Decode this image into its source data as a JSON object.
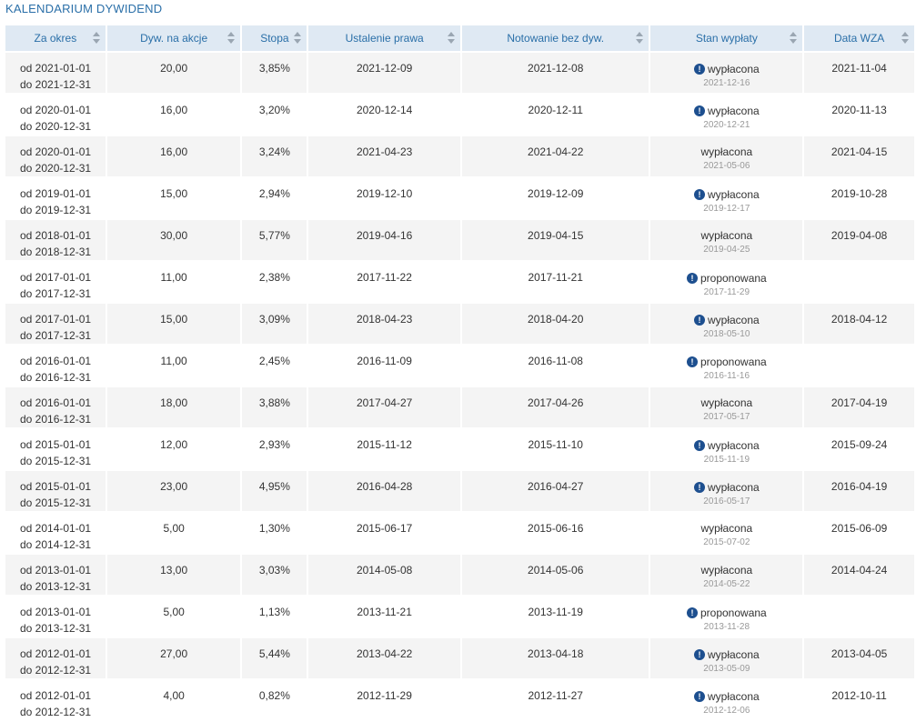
{
  "title": "KALENDARIUM DYWIDEND",
  "columns": [
    "Za okres",
    "Dyw. na akcje",
    "Stopa",
    "Ustalenie prawa",
    "Notowanie bez dyw.",
    "Stan wypłaty",
    "Data WZA"
  ],
  "rows": [
    {
      "from": "od 2021-01-01",
      "to": "do 2021-12-31",
      "div": "20,00",
      "rate": "3,85%",
      "record": "2021-12-09",
      "exdiv": "2021-12-08",
      "status": "wypłacona",
      "status_date": "2021-12-16",
      "info": true,
      "wza": "2021-11-04"
    },
    {
      "from": "od 2020-01-01",
      "to": "do 2020-12-31",
      "div": "16,00",
      "rate": "3,20%",
      "record": "2020-12-14",
      "exdiv": "2020-12-11",
      "status": "wypłacona",
      "status_date": "2020-12-21",
      "info": true,
      "wza": "2020-11-13"
    },
    {
      "from": "od 2020-01-01",
      "to": "do 2020-12-31",
      "div": "16,00",
      "rate": "3,24%",
      "record": "2021-04-23",
      "exdiv": "2021-04-22",
      "status": "wypłacona",
      "status_date": "2021-05-06",
      "info": false,
      "wza": "2021-04-15"
    },
    {
      "from": "od 2019-01-01",
      "to": "do 2019-12-31",
      "div": "15,00",
      "rate": "2,94%",
      "record": "2019-12-10",
      "exdiv": "2019-12-09",
      "status": "wypłacona",
      "status_date": "2019-12-17",
      "info": true,
      "wza": "2019-10-28"
    },
    {
      "from": "od 2018-01-01",
      "to": "do 2018-12-31",
      "div": "30,00",
      "rate": "5,77%",
      "record": "2019-04-16",
      "exdiv": "2019-04-15",
      "status": "wypłacona",
      "status_date": "2019-04-25",
      "info": false,
      "wza": "2019-04-08"
    },
    {
      "from": "od 2017-01-01",
      "to": "do 2017-12-31",
      "div": "11,00",
      "rate": "2,38%",
      "record": "2017-11-22",
      "exdiv": "2017-11-21",
      "status": "proponowana",
      "status_date": "2017-11-29",
      "info": true,
      "wza": ""
    },
    {
      "from": "od 2017-01-01",
      "to": "do 2017-12-31",
      "div": "15,00",
      "rate": "3,09%",
      "record": "2018-04-23",
      "exdiv": "2018-04-20",
      "status": "wypłacona",
      "status_date": "2018-05-10",
      "info": true,
      "wza": "2018-04-12"
    },
    {
      "from": "od 2016-01-01",
      "to": "do 2016-12-31",
      "div": "11,00",
      "rate": "2,45%",
      "record": "2016-11-09",
      "exdiv": "2016-11-08",
      "status": "proponowana",
      "status_date": "2016-11-16",
      "info": true,
      "wza": ""
    },
    {
      "from": "od 2016-01-01",
      "to": "do 2016-12-31",
      "div": "18,00",
      "rate": "3,88%",
      "record": "2017-04-27",
      "exdiv": "2017-04-26",
      "status": "wypłacona",
      "status_date": "2017-05-17",
      "info": false,
      "wza": "2017-04-19"
    },
    {
      "from": "od 2015-01-01",
      "to": "do 2015-12-31",
      "div": "12,00",
      "rate": "2,93%",
      "record": "2015-11-12",
      "exdiv": "2015-11-10",
      "status": "wypłacona",
      "status_date": "2015-11-19",
      "info": true,
      "wza": "2015-09-24"
    },
    {
      "from": "od 2015-01-01",
      "to": "do 2015-12-31",
      "div": "23,00",
      "rate": "4,95%",
      "record": "2016-04-28",
      "exdiv": "2016-04-27",
      "status": "wypłacona",
      "status_date": "2016-05-17",
      "info": true,
      "wza": "2016-04-19"
    },
    {
      "from": "od 2014-01-01",
      "to": "do 2014-12-31",
      "div": "5,00",
      "rate": "1,30%",
      "record": "2015-06-17",
      "exdiv": "2015-06-16",
      "status": "wypłacona",
      "status_date": "2015-07-02",
      "info": false,
      "wza": "2015-06-09"
    },
    {
      "from": "od 2013-01-01",
      "to": "do 2013-12-31",
      "div": "13,00",
      "rate": "3,03%",
      "record": "2014-05-08",
      "exdiv": "2014-05-06",
      "status": "wypłacona",
      "status_date": "2014-05-22",
      "info": false,
      "wza": "2014-04-24"
    },
    {
      "from": "od 2013-01-01",
      "to": "do 2013-12-31",
      "div": "5,00",
      "rate": "1,13%",
      "record": "2013-11-21",
      "exdiv": "2013-11-19",
      "status": "proponowana",
      "status_date": "2013-11-28",
      "info": true,
      "wza": ""
    },
    {
      "from": "od 2012-01-01",
      "to": "do 2012-12-31",
      "div": "27,00",
      "rate": "5,44%",
      "record": "2013-04-22",
      "exdiv": "2013-04-18",
      "status": "wypłacona",
      "status_date": "2013-05-09",
      "info": true,
      "wza": "2013-04-05"
    },
    {
      "from": "od 2012-01-01",
      "to": "do 2012-12-31",
      "div": "4,00",
      "rate": "0,82%",
      "record": "2012-11-29",
      "exdiv": "2012-11-27",
      "status": "wypłacona",
      "status_date": "2012-12-06",
      "info": true,
      "wza": "2012-10-11"
    }
  ]
}
